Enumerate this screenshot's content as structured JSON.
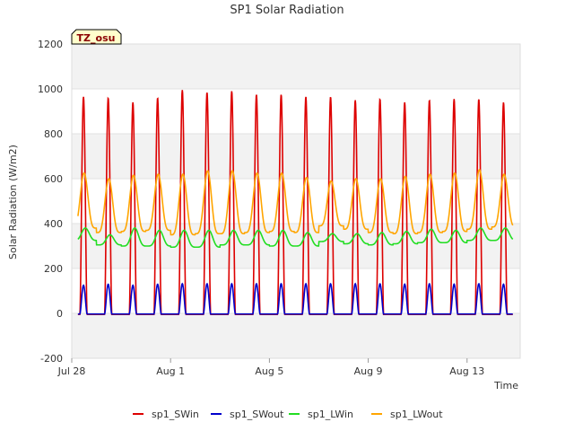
{
  "chart_data": {
    "type": "line",
    "title": "SP1 Solar Radiation",
    "xlabel": "Time",
    "ylabel": "Solar Radiation (W/m2)",
    "ylim": [
      -200,
      1200
    ],
    "yticks": [
      -200,
      0,
      200,
      400,
      600,
      800,
      1000,
      1200
    ],
    "xlim": [
      "2018-07-28",
      "2018-08-15"
    ],
    "xtick_labels": [
      "Jul 28",
      "Aug 1",
      "Aug 5",
      "Aug 9",
      "Aug 13"
    ],
    "xtick_days": [
      0,
      4,
      8,
      12,
      16
    ],
    "grid": true,
    "legend_position": "bottom",
    "annotation": "TZ_osu",
    "days": [
      "Jul 28",
      "Jul 29",
      "Jul 30",
      "Jul 31",
      "Aug 1",
      "Aug 2",
      "Aug 3",
      "Aug 4",
      "Aug 5",
      "Aug 6",
      "Aug 7",
      "Aug 8",
      "Aug 9",
      "Aug 10",
      "Aug 11",
      "Aug 12",
      "Aug 13",
      "Aug 14"
    ],
    "series": [
      {
        "name": "sp1_SWin",
        "color": "#dd0000",
        "daily_peak": [
          965,
          960,
          940,
          960,
          995,
          985,
          990,
          975,
          975,
          965,
          965,
          950,
          955,
          940,
          950,
          955,
          955,
          940
        ],
        "night_value": -5
      },
      {
        "name": "sp1_SWout",
        "color": "#0000cc",
        "daily_peak": [
          125,
          130,
          125,
          130,
          132,
          132,
          132,
          132,
          132,
          132,
          132,
          132,
          132,
          130,
          132,
          130,
          132,
          130
        ],
        "night_value": -3
      },
      {
        "name": "sp1_LWin",
        "color": "#22dd22",
        "daily_peak": [
          380,
          350,
          380,
          370,
          370,
          370,
          370,
          370,
          370,
          360,
          355,
          355,
          360,
          365,
          375,
          370,
          380,
          380
        ],
        "daily_low": [
          325,
          305,
          300,
          300,
          295,
          295,
          305,
          305,
          300,
          300,
          320,
          310,
          305,
          310,
          315,
          315,
          325,
          325
        ]
      },
      {
        "name": "sp1_LWout",
        "color": "#ffa500",
        "daily_peak": [
          625,
          600,
          615,
          620,
          620,
          635,
          635,
          625,
          625,
          605,
          590,
          600,
          600,
          610,
          620,
          625,
          640,
          620
        ],
        "daily_low": [
          380,
          360,
          365,
          370,
          350,
          355,
          355,
          360,
          365,
          360,
          390,
          375,
          360,
          355,
          360,
          365,
          375,
          385
        ]
      }
    ]
  }
}
